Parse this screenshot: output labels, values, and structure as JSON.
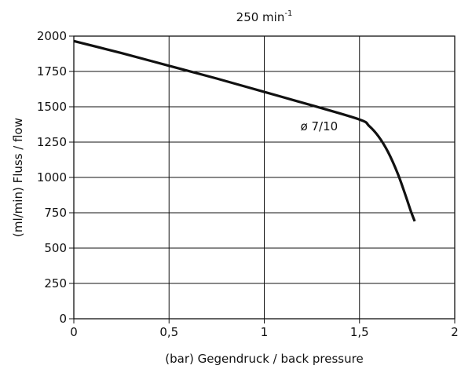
{
  "chart_data": {
    "type": "line",
    "title": "250 min",
    "title_superscript": "-1",
    "xlabel": "(bar) Gegendruck / back pressure",
    "ylabel": "(ml/min) Fluss / flow",
    "xlim": [
      0,
      2
    ],
    "ylim": [
      0,
      2000
    ],
    "x_ticks": [
      0,
      0.5,
      1,
      1.5,
      2
    ],
    "x_tick_labels": [
      "0",
      "0,5",
      "1",
      "1,5",
      "2"
    ],
    "y_ticks": [
      0,
      250,
      500,
      750,
      1000,
      1250,
      1500,
      1750,
      2000
    ],
    "y_tick_labels": [
      "0",
      "250",
      "500",
      "750",
      "1000",
      "1250",
      "1500",
      "1750",
      "2000"
    ],
    "grid": true,
    "legend": "none",
    "series": [
      {
        "color": "#111111",
        "x": [
          0,
          0.25,
          0.5,
          0.75,
          1.0,
          1.25,
          1.5,
          1.55,
          1.6,
          1.65,
          1.7,
          1.74,
          1.77,
          1.79
        ],
        "y": [
          1965,
          1880,
          1790,
          1700,
          1605,
          1510,
          1410,
          1365,
          1290,
          1180,
          1030,
          880,
          760,
          690
        ]
      }
    ],
    "annotations": [
      {
        "text": "ø 7/10",
        "x": 1.19,
        "y": 1360
      }
    ]
  }
}
